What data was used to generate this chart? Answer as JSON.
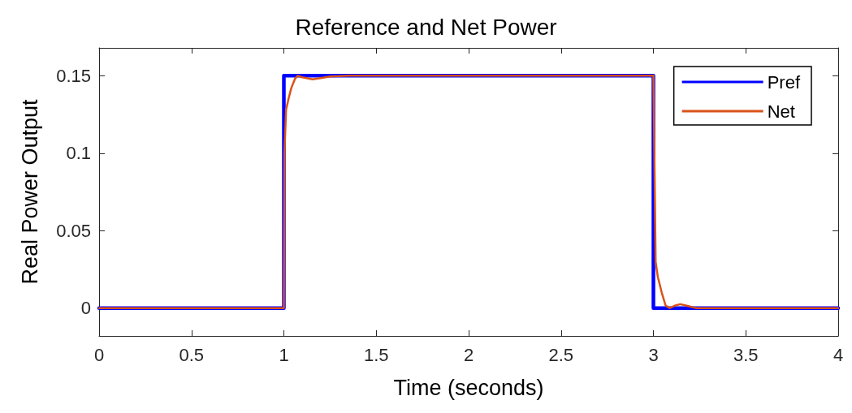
{
  "chart_data": {
    "type": "line",
    "title": "Reference and Net Power",
    "xlabel": "Time (seconds)",
    "ylabel": "Real Power Output",
    "xlim": [
      0,
      4
    ],
    "xticks": [
      0,
      0.5,
      1,
      1.5,
      2,
      2.5,
      3,
      3.5,
      4
    ],
    "ylim": [
      -0.018,
      0.168
    ],
    "yticks": [
      0,
      0.05,
      0.1,
      0.15
    ],
    "grid": false,
    "legend": "top right",
    "marker": "none",
    "line_style": "solid",
    "series": [
      {
        "name": "Pref",
        "color": "#0000ff",
        "x": [
          0,
          1,
          1,
          3,
          3,
          4
        ],
        "values": [
          0,
          0,
          0.15,
          0.15,
          0,
          0
        ]
      },
      {
        "name": "Net",
        "color": "#d95319",
        "x": [
          0,
          1,
          1.003,
          1.012,
          1.025,
          1.04,
          1.06,
          1.075,
          1.1,
          1.155,
          1.2,
          1.25,
          1.35,
          2,
          3,
          3.005,
          3.012,
          3.024,
          3.045,
          3.066,
          3.088,
          3.115,
          3.145,
          3.18,
          3.23,
          3.5,
          4
        ],
        "values": [
          0,
          0,
          0.1,
          0.128,
          0.135,
          0.142,
          0.148,
          0.15,
          0.149,
          0.1477,
          0.1485,
          0.1495,
          0.15,
          0.15,
          0.15,
          0.1,
          0.03,
          0.02,
          0.01,
          0.0016,
          0,
          0.0015,
          0.0025,
          0.0015,
          0,
          0,
          0
        ]
      }
    ]
  }
}
